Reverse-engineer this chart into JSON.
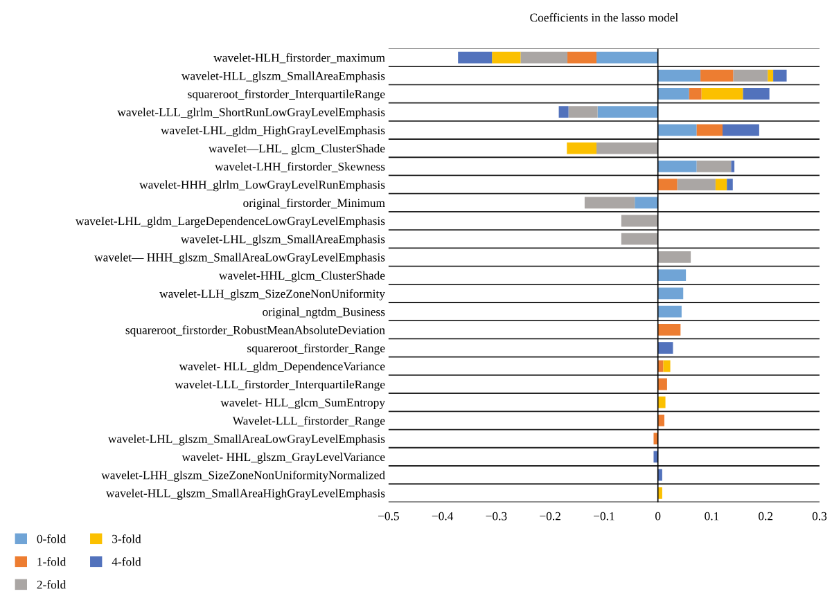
{
  "chart_data": {
    "type": "bar",
    "orientation": "horizontal",
    "stacked": true,
    "title": "Coefficients in the lasso model",
    "categories": [
      "wavelet-HLH_firstorder_maximum",
      "wavelet-HLL_glszm_SmallAreaEmphasis",
      "squareroot_firstorder_InterquartileRange",
      "wavelet-LLL_glrlm_ShortRunLowGrayLevelEmphasis",
      "waveIet-LHL_gldm_HighGrayLevelEmphasis",
      "waveIet—LHL_ glcm_ClusterShade",
      "wavelet-LHH_firstorder_Skewness",
      "wavelet-HHH_glrlm_LowGrayLevelRunEmphasis",
      "original_firstorder_Minimum",
      "waveIet-LHL_gldm_LargeDependenceLowGrayLevelEmphasis",
      "waveIet-LHL_glszm_SmallAreaEmphasis",
      "wavelet— HHH_glszm_SmallAreaLowGrayLevelEmphasis",
      "wavelet-HHL_glcm_ClusterShade",
      "wavelet-LLH_glszm_SizeZoneNonUniformity",
      "original_ngtdm_Business",
      "squareroot_firstorder_RobustMeanAbsoluteDeviation",
      "squareroot_firstorder_Range",
      "wavelet- HLL_gldm_DependenceVariance",
      "wavelet-LLL_firstorder_InterquartileRange",
      "wavelet- HLL_glcm_SumEntropy",
      "Wavelet-LLL_firstorder_Range",
      "wavelet-LHL_glszm_SmallAreaLowGrayLevelEmphasis",
      "wavelet- HHL_glszm_GrayLevelVariance",
      "wavelet-LHH_glszm_SizeZoneNonUniformityNormalized",
      "wavelet-HLL_glszm_SmallAreaHighGrayLevelEmphasis"
    ],
    "series": [
      {
        "name": "0-fold",
        "color": "#70a4d6",
        "values": [
          -0.114,
          0.079,
          0.058,
          -0.112,
          0.072,
          null,
          0.072,
          null,
          -0.043,
          null,
          null,
          null,
          0.052,
          0.047,
          0.044,
          null,
          null,
          null,
          null,
          null,
          null,
          null,
          null,
          null,
          null
        ]
      },
      {
        "name": "1-fold",
        "color": "#ed7d31",
        "values": [
          -0.054,
          0.061,
          0.023,
          null,
          0.048,
          null,
          null,
          0.036,
          null,
          null,
          null,
          null,
          null,
          null,
          null,
          0.042,
          null,
          0.01,
          0.017,
          null,
          0.012,
          -0.008,
          null,
          null,
          null
        ]
      },
      {
        "name": "2-fold",
        "color": "#aaa6a4",
        "values": [
          -0.087,
          0.064,
          null,
          -0.054,
          null,
          -0.114,
          0.064,
          0.071,
          -0.093,
          -0.068,
          -0.068,
          0.061,
          null,
          null,
          null,
          null,
          null,
          null,
          null,
          null,
          null,
          null,
          null,
          null,
          null
        ]
      },
      {
        "name": "3-fold",
        "color": "#fbc000",
        "values": [
          -0.053,
          0.01,
          0.077,
          null,
          null,
          -0.055,
          null,
          0.021,
          null,
          null,
          null,
          null,
          null,
          null,
          null,
          null,
          null,
          0.013,
          null,
          0.014,
          null,
          null,
          null,
          null,
          0.008
        ]
      },
      {
        "name": "4-fold",
        "color": "#5272bc",
        "values": [
          -0.063,
          0.025,
          0.049,
          -0.018,
          0.068,
          null,
          0.006,
          0.011,
          null,
          null,
          null,
          null,
          null,
          null,
          null,
          null,
          0.028,
          null,
          null,
          null,
          null,
          null,
          -0.008,
          0.008,
          null
        ]
      }
    ],
    "xlim": [
      -0.5,
      0.3
    ],
    "xticks": [
      {
        "value": -0.5,
        "label": "−0.5"
      },
      {
        "value": -0.4,
        "label": "−0.4"
      },
      {
        "value": -0.3,
        "label": "−0.3"
      },
      {
        "value": -0.2,
        "label": "−0.2"
      },
      {
        "value": -0.1,
        "label": "−0.1"
      },
      0,
      0.1,
      0.2,
      0.3
    ],
    "grid": "y",
    "legend": "bottom left"
  }
}
